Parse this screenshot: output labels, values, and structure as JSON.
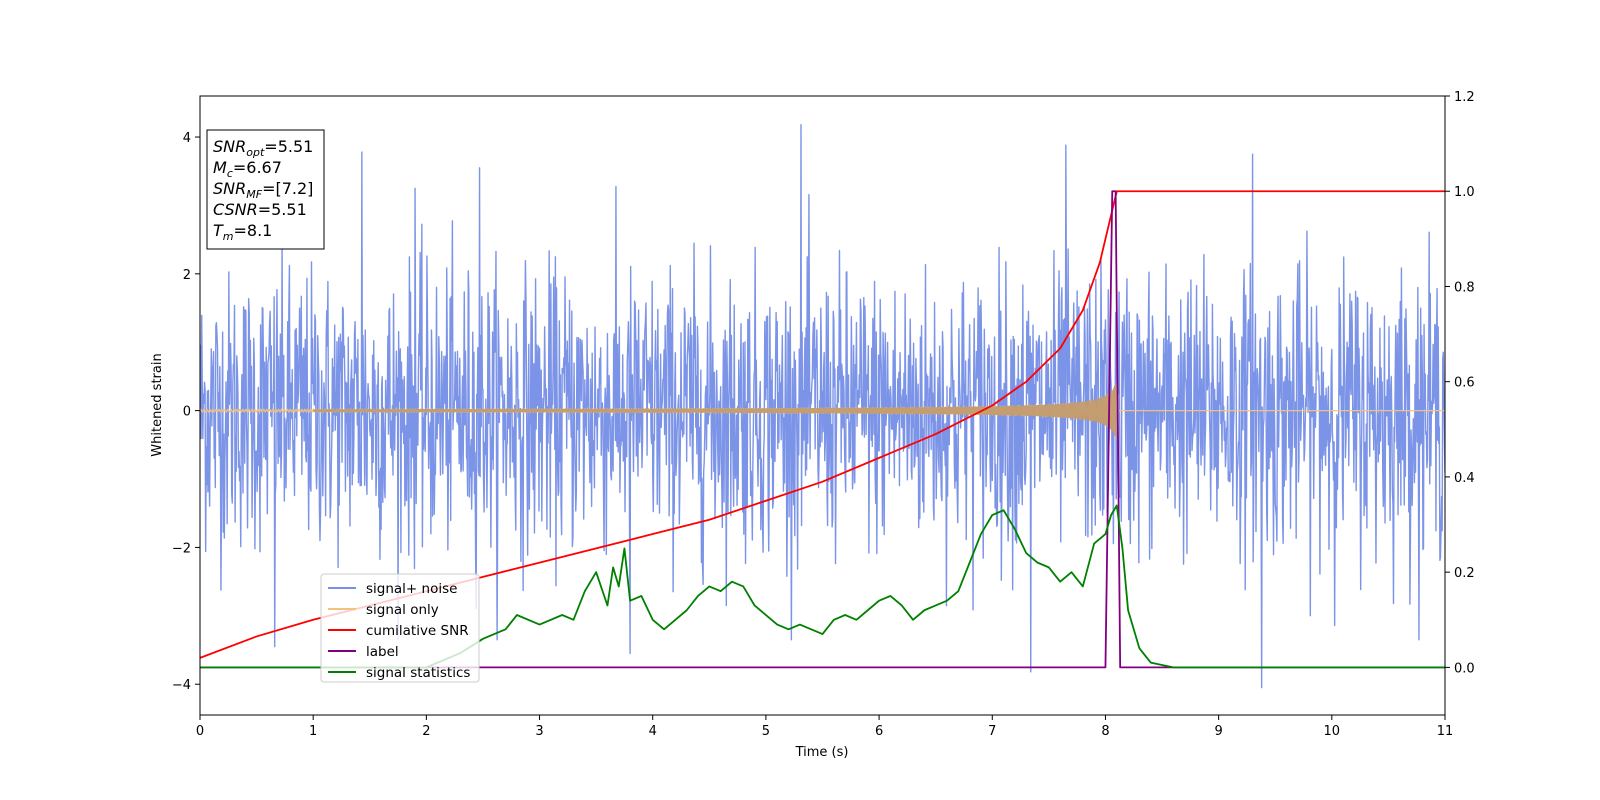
{
  "chart_data": {
    "type": "line",
    "title": "",
    "xlabel": "Time (s)",
    "ylabel": "Whitened strain",
    "xlim": [
      0,
      11
    ],
    "ylim": [
      -4.45,
      4.6
    ],
    "y2lim": [
      -0.1,
      1.2
    ],
    "x_ticks": [
      "0",
      "1",
      "2",
      "3",
      "4",
      "5",
      "6",
      "7",
      "8",
      "9",
      "10",
      "11"
    ],
    "y_ticks": [
      "4",
      "2",
      "0",
      "−2",
      "−4"
    ],
    "y2_ticks": [
      "1.2",
      "1.0",
      "0.8",
      "0.6",
      "0.4",
      "0.2",
      "0.0"
    ],
    "legend_position": "lower-left",
    "series": [
      {
        "name": "signal+ noise",
        "color": "#7891e6",
        "axis": "left",
        "style": "noise",
        "sigma": 1.0,
        "peaks": [
          [
            0.66,
            -3.45
          ],
          [
            1.43,
            3.78
          ],
          [
            1.9,
            3.25
          ],
          [
            2.47,
            3.55
          ],
          [
            3.8,
            -3.55
          ],
          [
            5.31,
            4.18
          ],
          [
            7.34,
            -3.82
          ],
          [
            7.65,
            3.88
          ],
          [
            9.3,
            3.75
          ],
          [
            9.38,
            -4.05
          ]
        ]
      },
      {
        "name": "signal only",
        "color": "#f2c37d",
        "axis": "left",
        "style": "chirp",
        "merger_time": 8.1,
        "peak_amplitude": 0.42
      },
      {
        "name": "cumilative SNR",
        "color": "#ff0000",
        "axis": "right",
        "x": [
          0,
          0.5,
          1,
          1.5,
          2,
          2.5,
          3,
          3.5,
          4,
          4.5,
          5,
          5.5,
          6,
          6.5,
          7,
          7.3,
          7.6,
          7.8,
          7.95,
          8.05,
          8.1,
          11
        ],
        "y": [
          0.02,
          0.065,
          0.1,
          0.13,
          0.16,
          0.19,
          0.22,
          0.25,
          0.28,
          0.31,
          0.35,
          0.39,
          0.44,
          0.49,
          0.55,
          0.6,
          0.67,
          0.75,
          0.85,
          0.95,
          1.0,
          1.0
        ]
      },
      {
        "name": "label",
        "color": "#800080",
        "axis": "right",
        "x": [
          0,
          8.0,
          8.06,
          8.09,
          8.13,
          11
        ],
        "y": [
          0.0,
          0.0,
          1.0,
          1.0,
          0.0,
          0.0
        ]
      },
      {
        "name": "signal statistics",
        "color": "#008000",
        "axis": "right",
        "x": [
          0,
          1,
          2,
          2.3,
          2.5,
          2.7,
          2.8,
          3.0,
          3.2,
          3.3,
          3.4,
          3.5,
          3.6,
          3.65,
          3.7,
          3.75,
          3.8,
          3.9,
          4.0,
          4.1,
          4.2,
          4.3,
          4.4,
          4.5,
          4.6,
          4.7,
          4.8,
          4.9,
          5.0,
          5.1,
          5.2,
          5.3,
          5.4,
          5.5,
          5.6,
          5.7,
          5.8,
          5.9,
          6.0,
          6.1,
          6.2,
          6.3,
          6.4,
          6.5,
          6.6,
          6.7,
          6.8,
          6.9,
          7.0,
          7.1,
          7.2,
          7.3,
          7.4,
          7.5,
          7.6,
          7.7,
          7.8,
          7.9,
          8.0,
          8.05,
          8.1,
          8.15,
          8.2,
          8.3,
          8.4,
          8.6,
          9,
          10,
          11
        ],
        "y": [
          0.0,
          0.0,
          0.0,
          0.03,
          0.06,
          0.08,
          0.11,
          0.09,
          0.11,
          0.1,
          0.16,
          0.2,
          0.13,
          0.21,
          0.17,
          0.25,
          0.14,
          0.15,
          0.1,
          0.08,
          0.1,
          0.12,
          0.15,
          0.17,
          0.16,
          0.18,
          0.17,
          0.13,
          0.11,
          0.09,
          0.08,
          0.09,
          0.08,
          0.07,
          0.1,
          0.11,
          0.1,
          0.12,
          0.14,
          0.15,
          0.13,
          0.1,
          0.12,
          0.13,
          0.14,
          0.16,
          0.22,
          0.28,
          0.32,
          0.33,
          0.29,
          0.24,
          0.22,
          0.21,
          0.18,
          0.2,
          0.17,
          0.26,
          0.28,
          0.32,
          0.34,
          0.25,
          0.12,
          0.04,
          0.01,
          0.0,
          0.0,
          0.0,
          0.0
        ]
      }
    ],
    "info_box": [
      {
        "var": "SNR",
        "sub": "opt",
        "value": "=5.51"
      },
      {
        "var": "M",
        "sub": "c",
        "value": "=6.67"
      },
      {
        "var": "SNR",
        "sub": "MF",
        "value": "=[7.2]"
      },
      {
        "var": "CSNR",
        "sub": "",
        "value": "=5.51"
      },
      {
        "var": "T",
        "sub": "m",
        "value": "=8.1"
      }
    ]
  }
}
